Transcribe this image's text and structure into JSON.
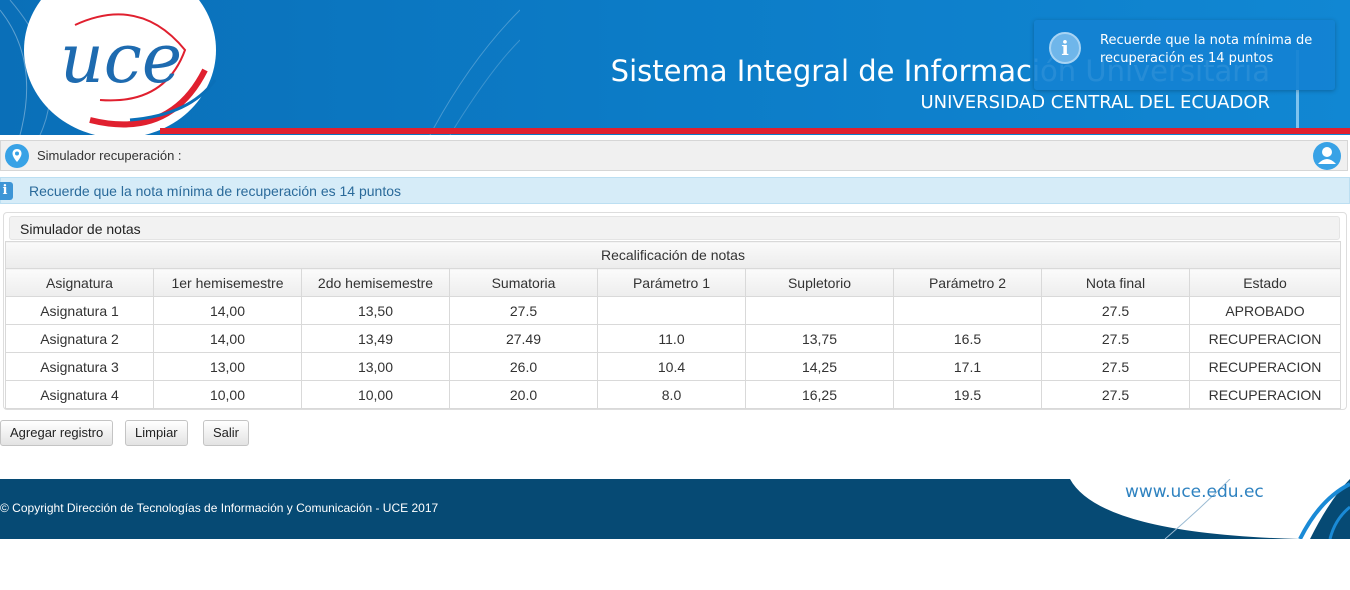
{
  "header": {
    "title": "Sistema Integral de Información Universitaria",
    "subtitle": "UNIVERSIDAD CENTRAL DEL ECUADOR",
    "logo_text": "uce",
    "logo_icon": "uce-logo-icon"
  },
  "toast": {
    "icon": "info-icon",
    "message": "Recuerde que la nota mínima de recuperación es 14 puntos"
  },
  "breadcrumb": {
    "icon": "location-pin-icon",
    "text": "Simulador recuperación :",
    "user_icon": "user-icon"
  },
  "info": {
    "icon": "info-icon",
    "message": "Recuerde que la nota mínima de recuperación es 14 puntos"
  },
  "panel": {
    "title": "Simulador de notas",
    "table": {
      "group_header": "Recalificación de notas",
      "columns": [
        "Asignatura",
        "1er hemisemestre",
        "2do hemisemestre",
        "Sumatoria",
        "Parámetro 1",
        "Supletorio",
        "Parámetro 2",
        "Nota final",
        "Estado"
      ],
      "rows": [
        [
          "Asignatura 1",
          "14,00",
          "13,50",
          "27.5",
          "",
          "",
          "",
          "27.5",
          "APROBADO"
        ],
        [
          "Asignatura 2",
          "14,00",
          "13,49",
          "27.49",
          "11.0",
          "13,75",
          "16.5",
          "27.5",
          "RECUPERACION"
        ],
        [
          "Asignatura 3",
          "13,00",
          "13,00",
          "26.0",
          "10.4",
          "14,25",
          "17.1",
          "27.5",
          "RECUPERACION"
        ],
        [
          "Asignatura 4",
          "10,00",
          "10,00",
          "20.0",
          "8.0",
          "16,25",
          "19.5",
          "27.5",
          "RECUPERACION"
        ]
      ]
    }
  },
  "buttons": {
    "add": "Agregar registro",
    "clear": "Limpiar",
    "exit": "Salir"
  },
  "footer": {
    "copyright": "© Copyright Dirección de Tecnologías de Información y Comunicación - UCE 2017",
    "url": "www.uce.edu.ec"
  },
  "colors": {
    "header_blue": "#0c7cc7",
    "accent_red": "#e0202f",
    "footer_navy": "#064a74",
    "info_bg": "#d6ecf8"
  }
}
